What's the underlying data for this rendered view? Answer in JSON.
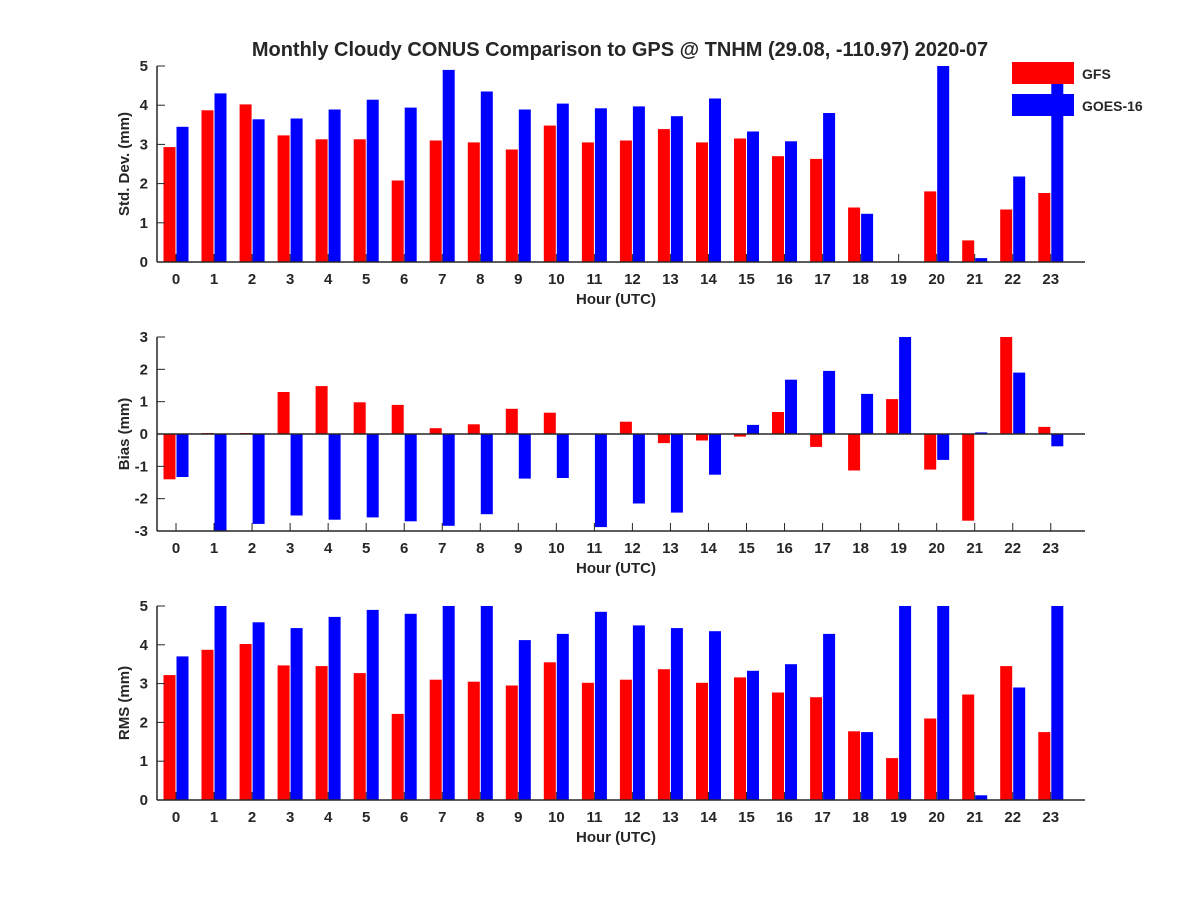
{
  "title": "Monthly Cloudy CONUS Comparison to GPS @ TNHM (29.08, -110.97) 2020-07",
  "colors": {
    "GFS": "#ff0000",
    "GOES-16": "#0000ff",
    "axis": "#262626"
  },
  "legend": {
    "placement": "top-right",
    "entries": [
      "GFS",
      "GOES-16"
    ]
  },
  "chart_data": [
    {
      "type": "bar",
      "name": "std_dev",
      "xlabel": "Hour (UTC)",
      "ylabel": "Std. Dev. (mm)",
      "ylim": [
        0,
        5
      ],
      "yticks": [
        0,
        1,
        2,
        3,
        4,
        5
      ],
      "categories": [
        "0",
        "1",
        "2",
        "3",
        "4",
        "5",
        "6",
        "7",
        "8",
        "9",
        "10",
        "11",
        "12",
        "13",
        "14",
        "15",
        "16",
        "17",
        "18",
        "19",
        "20",
        "21",
        "22",
        "23"
      ],
      "series": [
        {
          "name": "GFS",
          "values": [
            2.93,
            3.87,
            4.02,
            3.23,
            3.13,
            3.13,
            2.08,
            3.1,
            3.05,
            2.87,
            3.48,
            3.05,
            3.1,
            3.39,
            3.05,
            3.15,
            2.7,
            2.63,
            1.39,
            0.0,
            1.8,
            0.55,
            1.34,
            1.76
          ]
        },
        {
          "name": "GOES-16",
          "values": [
            3.45,
            4.3,
            3.64,
            3.66,
            3.89,
            4.14,
            3.94,
            4.9,
            4.35,
            3.89,
            4.04,
            3.92,
            3.97,
            3.72,
            4.17,
            3.33,
            3.08,
            3.8,
            1.23,
            0.0,
            5.0,
            0.1,
            2.18,
            5.0
          ]
        }
      ]
    },
    {
      "type": "bar",
      "name": "bias",
      "xlabel": "Hour (UTC)",
      "ylabel": "Bias (mm)",
      "ylim": [
        -3,
        3
      ],
      "yticks": [
        -3,
        -2,
        -1,
        0,
        1,
        2,
        3
      ],
      "categories": [
        "0",
        "1",
        "2",
        "3",
        "4",
        "5",
        "6",
        "7",
        "8",
        "9",
        "10",
        "11",
        "12",
        "13",
        "14",
        "15",
        "16",
        "17",
        "18",
        "19",
        "20",
        "21",
        "22",
        "23"
      ],
      "series": [
        {
          "name": "GFS",
          "values": [
            -1.4,
            0.03,
            0.03,
            1.3,
            1.48,
            0.98,
            0.9,
            0.18,
            0.3,
            0.78,
            0.66,
            0.0,
            0.38,
            -0.28,
            -0.2,
            -0.08,
            0.68,
            -0.4,
            -1.13,
            1.08,
            -1.1,
            -2.68,
            3.0,
            0.22
          ]
        },
        {
          "name": "GOES-16",
          "values": [
            -1.33,
            -3.0,
            -2.78,
            -2.52,
            -2.65,
            -2.58,
            -2.7,
            -2.84,
            -2.48,
            -1.38,
            -1.36,
            -2.88,
            -2.15,
            -2.43,
            -1.26,
            0.28,
            1.68,
            1.95,
            1.24,
            3.0,
            -0.8,
            0.05,
            1.9,
            -0.38
          ]
        }
      ]
    },
    {
      "type": "bar",
      "name": "rms",
      "xlabel": "Hour (UTC)",
      "ylabel": "RMS (mm)",
      "ylim": [
        0,
        5
      ],
      "yticks": [
        0,
        1,
        2,
        3,
        4,
        5
      ],
      "categories": [
        "0",
        "1",
        "2",
        "3",
        "4",
        "5",
        "6",
        "7",
        "8",
        "9",
        "10",
        "11",
        "12",
        "13",
        "14",
        "15",
        "16",
        "17",
        "18",
        "19",
        "20",
        "21",
        "22",
        "23"
      ],
      "series": [
        {
          "name": "GFS",
          "values": [
            3.22,
            3.87,
            4.02,
            3.47,
            3.45,
            3.27,
            2.22,
            3.1,
            3.05,
            2.95,
            3.55,
            3.02,
            3.1,
            3.37,
            3.02,
            3.16,
            2.77,
            2.65,
            1.77,
            1.08,
            2.1,
            2.72,
            3.45,
            1.75
          ]
        },
        {
          "name": "GOES-16",
          "values": [
            3.7,
            5.0,
            4.58,
            4.43,
            4.72,
            4.9,
            4.8,
            5.0,
            5.0,
            4.12,
            4.28,
            4.85,
            4.5,
            4.43,
            4.35,
            3.33,
            3.5,
            4.28,
            1.75,
            5.0,
            5.0,
            0.12,
            2.9,
            5.0
          ]
        }
      ]
    }
  ]
}
